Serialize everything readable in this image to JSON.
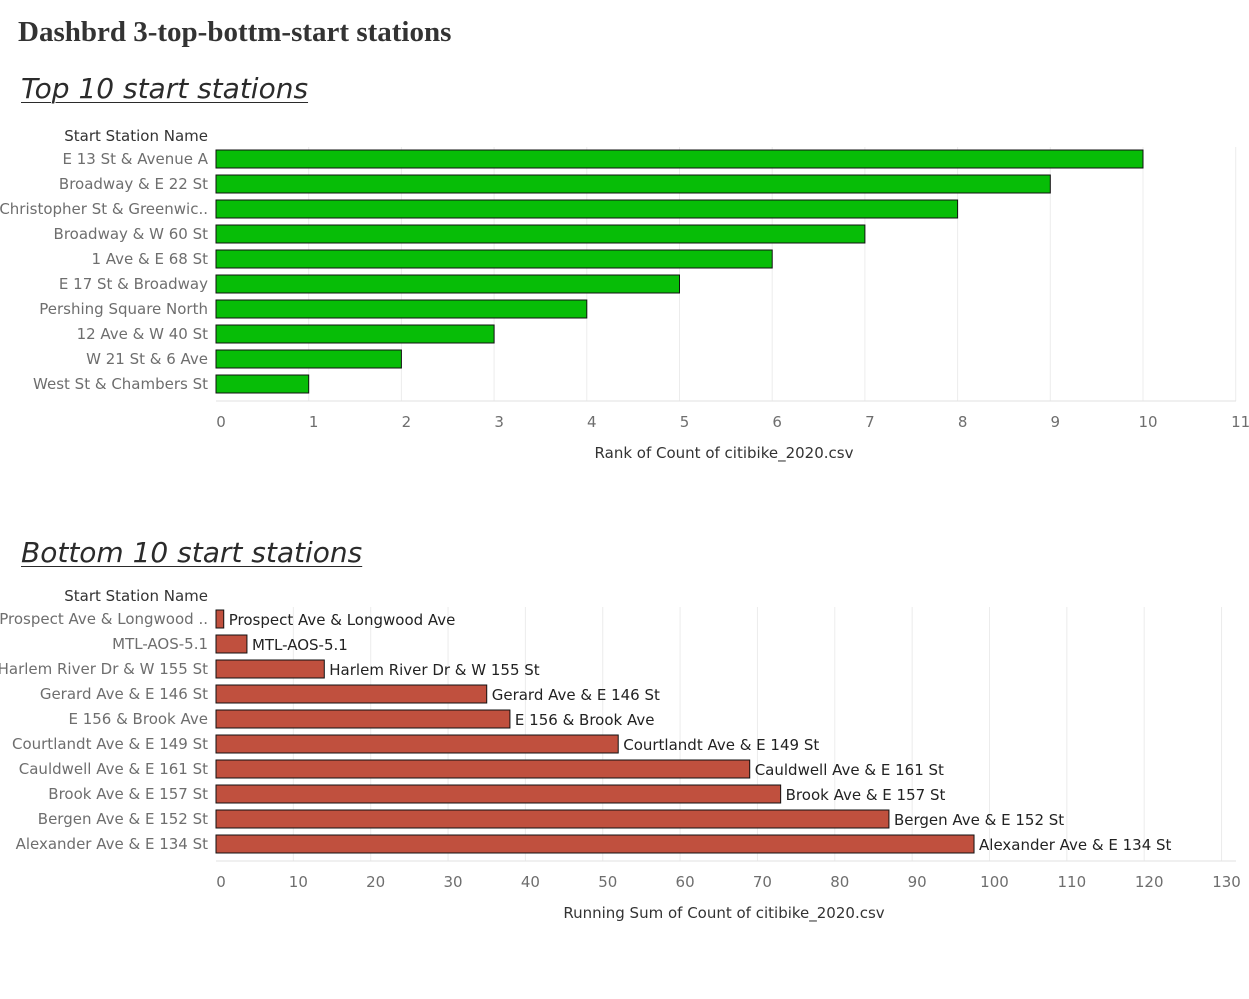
{
  "dashboard": {
    "title": "Dashbrd 3-top-bottm-start stations"
  },
  "chart_data": [
    {
      "type": "bar",
      "orientation": "horizontal",
      "title": "Top 10 start stations",
      "ylabel": "Start Station Name",
      "xlabel": "Rank of Count of citibike_2020.csv",
      "categories": [
        "E 13 St & Avenue A",
        "Broadway & E 22 St",
        "Christopher St & Greenwic..",
        "Broadway & W 60 St",
        "1 Ave & E 68 St",
        "E 17 St & Broadway",
        "Pershing Square North",
        "12 Ave & W 40 St",
        "W 21 St & 6 Ave",
        "West St & Chambers St"
      ],
      "values": [
        10,
        9,
        8,
        7,
        6,
        5,
        4,
        3,
        2,
        1
      ],
      "xlim": [
        0,
        11
      ],
      "xticks": [
        0,
        1,
        2,
        3,
        4,
        5,
        6,
        7,
        8,
        9,
        10,
        11
      ],
      "grid": "vertical",
      "bar_color": "#07bd07",
      "data_labels": []
    },
    {
      "type": "bar",
      "orientation": "horizontal",
      "title": "Bottom 10 start stations",
      "ylabel": "Start Station Name",
      "xlabel": "Running Sum of Count of citibike_2020.csv",
      "categories": [
        "Prospect Ave & Longwood ..",
        "MTL-AOS-5.1",
        "Harlem River Dr & W 155 St",
        "Gerard Ave & E 146 St",
        "E 156 & Brook Ave",
        "Courtlandt Ave & E 149 St",
        "Cauldwell Ave & E 161 St",
        "Brook Ave & E 157 St",
        "Bergen Ave & E 152 St",
        "Alexander Ave & E 134 St"
      ],
      "values": [
        1,
        4,
        14,
        35,
        38,
        52,
        69,
        73,
        87,
        98
      ],
      "xlim": [
        0,
        132
      ],
      "xticks": [
        0,
        10,
        20,
        30,
        40,
        50,
        60,
        70,
        80,
        90,
        100,
        110,
        120,
        130
      ],
      "grid": "vertical",
      "bar_color": "#c0503e",
      "data_labels": [
        "Prospect Ave & Longwood Ave",
        "MTL-AOS-5.1",
        "Harlem River Dr & W 155 St",
        "Gerard Ave & E 146 St",
        "E 156 & Brook Ave",
        "Courtlandt Ave & E 149 St",
        "Cauldwell Ave & E 161 St",
        "Brook Ave & E 157 St",
        "Bergen Ave & E 152 St",
        "Alexander Ave & E 134 St"
      ]
    }
  ]
}
